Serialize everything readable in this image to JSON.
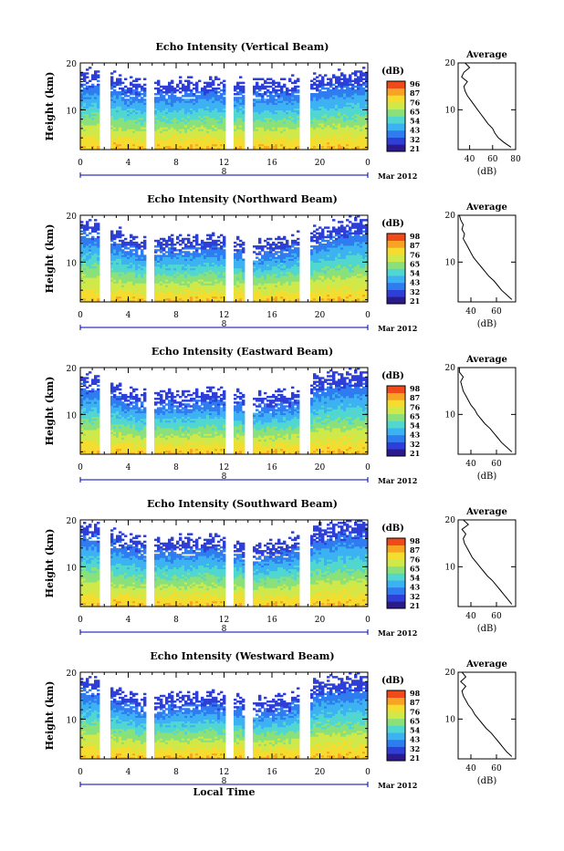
{
  "figure": {
    "xlabel": "Local Time",
    "ylabel": "Height (km)",
    "date_label": "Mar 2012",
    "day_label": "8",
    "colorbar_title": "(dB)",
    "avg_title": "Average",
    "avg_xlabel": "(dB)",
    "colors": {
      "axis": "#000000",
      "time_axis": "#0000aa",
      "colormap": [
        "#2b1a8c",
        "#2d3fd6",
        "#2f7cf0",
        "#3db2f2",
        "#51d7d0",
        "#8ae07a",
        "#cfe84a",
        "#f4dd2e",
        "#f8a323",
        "#f04a1b"
      ]
    }
  },
  "chart_data": [
    {
      "type": "heatmap",
      "title": "Echo Intensity (Vertical Beam)",
      "xlabel": "",
      "ylabel": "Height (km)",
      "x_ticks": [
        "0",
        "4",
        "8",
        "12",
        "16",
        "20",
        "0"
      ],
      "xlim": [
        0,
        24
      ],
      "y_ticks": [
        "20",
        "10"
      ],
      "ylim": [
        1.5,
        20
      ],
      "colorbar_ticks": [
        "96",
        "87",
        "76",
        "65",
        "54",
        "43",
        "32",
        "21"
      ],
      "gaps": [
        [
          1.5,
          2.5
        ],
        [
          5.5,
          6.2
        ],
        [
          12.2,
          12.7
        ],
        [
          13.7,
          14.4
        ],
        [
          18.2,
          19.2
        ]
      ],
      "echo_top_km": [
        17.5,
        17.5,
        17,
        16.8,
        15.5,
        15.5,
        15.5,
        15.5,
        15.5,
        15.5,
        16,
        16,
        15.8,
        15.5,
        15.5,
        15.5,
        15.5,
        15.8,
        16,
        16,
        16.5,
        17,
        17.2,
        17.5,
        17.5
      ],
      "avg_profile": {
        "xticks": [
          "40",
          "60",
          "80"
        ],
        "xlim": [
          30,
          80
        ],
        "ylim": [
          1.5,
          20
        ],
        "yticks": [
          "20",
          "10"
        ],
        "height": [
          2,
          3,
          4,
          5,
          6,
          7,
          8,
          9,
          10,
          11,
          12,
          13,
          14,
          15,
          16,
          17,
          18,
          19,
          20
        ],
        "db": [
          76,
          70,
          65,
          62,
          60,
          56,
          53,
          50,
          47,
          44,
          41,
          38,
          36,
          35,
          38,
          33,
          35,
          40,
          36
        ]
      }
    },
    {
      "type": "heatmap",
      "title": "Echo Intensity (Northward Beam)",
      "xlabel": "",
      "ylabel": "Height (km)",
      "x_ticks": [
        "0",
        "4",
        "8",
        "12",
        "16",
        "20",
        "0"
      ],
      "xlim": [
        0,
        24
      ],
      "y_ticks": [
        "20",
        "10"
      ],
      "ylim": [
        1.5,
        20
      ],
      "colorbar_ticks": [
        "98",
        "87",
        "76",
        "65",
        "54",
        "43",
        "32",
        "21"
      ],
      "gaps": [
        [
          1.5,
          2.5
        ],
        [
          5.5,
          6.2
        ],
        [
          12.2,
          12.7
        ],
        [
          13.7,
          14.4
        ],
        [
          18.2,
          19.2
        ]
      ],
      "echo_top_km": [
        18.5,
        18,
        17.5,
        16.5,
        15,
        14.5,
        14.5,
        14.5,
        14.5,
        14.5,
        15,
        15,
        14.8,
        14,
        13.5,
        13.5,
        14,
        14.5,
        15,
        15.5,
        16.5,
        17.5,
        18,
        18.5,
        18.5
      ],
      "avg_profile": {
        "xticks": [
          "40",
          "60"
        ],
        "xlim": [
          30,
          75
        ],
        "ylim": [
          1.5,
          20
        ],
        "yticks": [
          "20",
          "10"
        ],
        "height": [
          2,
          3,
          4,
          5,
          6,
          7,
          8,
          9,
          10,
          11,
          12,
          13,
          14,
          15,
          16,
          17,
          18,
          19,
          20
        ],
        "db": [
          72,
          68,
          64,
          61,
          58,
          54,
          51,
          48,
          45,
          42,
          40,
          38,
          36,
          34,
          35,
          33,
          34,
          32,
          31
        ]
      }
    },
    {
      "type": "heatmap",
      "title": "Echo Intensity (Eastward Beam)",
      "xlabel": "",
      "ylabel": "Height (km)",
      "x_ticks": [
        "0",
        "4",
        "8",
        "12",
        "16",
        "20",
        "0"
      ],
      "xlim": [
        0,
        24
      ],
      "y_ticks": [
        "20",
        "10"
      ],
      "ylim": [
        1.5,
        20
      ],
      "colorbar_ticks": [
        "98",
        "87",
        "76",
        "65",
        "54",
        "43",
        "32",
        "21"
      ],
      "gaps": [
        [
          1.5,
          2.5
        ],
        [
          5.5,
          6.2
        ],
        [
          12.2,
          12.7
        ],
        [
          13.7,
          14.4
        ],
        [
          18.2,
          19.2
        ]
      ],
      "echo_top_km": [
        18,
        17.5,
        17,
        16,
        14.5,
        14,
        14,
        14,
        14,
        14,
        14.5,
        14.5,
        14.5,
        14,
        13.5,
        13.5,
        13.5,
        14,
        14.5,
        16,
        17.5,
        18.5,
        18.5,
        18.5,
        18.5
      ],
      "avg_profile": {
        "xticks": [
          "40",
          "60"
        ],
        "xlim": [
          30,
          75
        ],
        "ylim": [
          1.5,
          20
        ],
        "yticks": [
          "20",
          "10"
        ],
        "height": [
          2,
          3,
          4,
          5,
          6,
          7,
          8,
          9,
          10,
          11,
          12,
          13,
          14,
          15,
          16,
          17,
          18,
          19,
          20
        ],
        "db": [
          72,
          68,
          64,
          61,
          58,
          55,
          51,
          48,
          45,
          43,
          40,
          38,
          36,
          34,
          33,
          32,
          34,
          31,
          31
        ]
      }
    },
    {
      "type": "heatmap",
      "title": "Echo Intensity (Southward Beam)",
      "xlabel": "",
      "ylabel": "Height (km)",
      "x_ticks": [
        "0",
        "4",
        "8",
        "12",
        "16",
        "20",
        "0"
      ],
      "xlim": [
        0,
        24
      ],
      "y_ticks": [
        "20",
        "10"
      ],
      "ylim": [
        1.5,
        20
      ],
      "colorbar_ticks": [
        "98",
        "87",
        "76",
        "65",
        "54",
        "43",
        "32",
        "21"
      ],
      "gaps": [
        [
          1.5,
          2.5
        ],
        [
          5.5,
          6.2
        ],
        [
          12.2,
          12.7
        ],
        [
          13.7,
          14.4
        ],
        [
          18.2,
          19.2
        ]
      ],
      "echo_top_km": [
        19,
        18.5,
        18,
        17,
        16,
        15.5,
        15.5,
        15.5,
        15.5,
        15.5,
        16,
        16,
        15.5,
        15,
        14.5,
        14,
        14.5,
        15,
        16,
        17,
        18,
        18.5,
        19,
        19,
        19
      ],
      "avg_profile": {
        "xticks": [
          "40",
          "60"
        ],
        "xlim": [
          30,
          75
        ],
        "ylim": [
          1.5,
          20
        ],
        "yticks": [
          "20",
          "10"
        ],
        "height": [
          2,
          3,
          4,
          5,
          6,
          7,
          8,
          9,
          10,
          11,
          12,
          13,
          14,
          15,
          16,
          17,
          18,
          19,
          20
        ],
        "db": [
          72,
          69,
          66,
          63,
          60,
          57,
          53,
          50,
          47,
          44,
          41,
          39,
          37,
          35,
          34,
          36,
          33,
          38,
          34
        ]
      }
    },
    {
      "type": "heatmap",
      "title": "Echo Intensity (Westward Beam)",
      "xlabel": "Local Time",
      "ylabel": "Height (km)",
      "x_ticks": [
        "0",
        "4",
        "8",
        "12",
        "16",
        "20",
        "0"
      ],
      "xlim": [
        0,
        24
      ],
      "y_ticks": [
        "20",
        "10"
      ],
      "ylim": [
        1.5,
        20
      ],
      "colorbar_ticks": [
        "98",
        "87",
        "76",
        "65",
        "54",
        "43",
        "32",
        "21"
      ],
      "gaps": [
        [
          1.5,
          2.5
        ],
        [
          5.5,
          6.2
        ],
        [
          12.2,
          12.7
        ],
        [
          13.7,
          14.4
        ],
        [
          18.2,
          19.2
        ]
      ],
      "echo_top_km": [
        18.5,
        18,
        17,
        16,
        15,
        14,
        14,
        14,
        14.5,
        14.5,
        15,
        15,
        14.5,
        14,
        13.5,
        13.5,
        13.5,
        14,
        15,
        16,
        17.5,
        18,
        18.5,
        18.5,
        18.5
      ],
      "avg_profile": {
        "xticks": [
          "40",
          "60"
        ],
        "xlim": [
          30,
          75
        ],
        "ylim": [
          1.5,
          20
        ],
        "yticks": [
          "20",
          "10"
        ],
        "height": [
          2,
          3,
          4,
          5,
          6,
          7,
          8,
          9,
          10,
          11,
          12,
          13,
          14,
          15,
          16,
          17,
          18,
          19,
          20
        ],
        "db": [
          72,
          68,
          65,
          62,
          59,
          56,
          52,
          49,
          46,
          43,
          41,
          38,
          36,
          34,
          33,
          36,
          32,
          36,
          33
        ]
      }
    }
  ]
}
